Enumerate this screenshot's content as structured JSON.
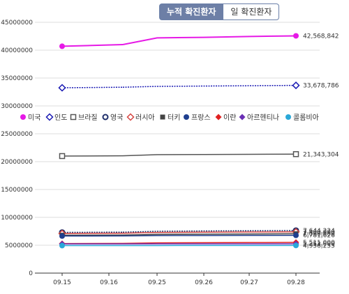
{
  "tabs": {
    "cumulative": "누적 확진환자",
    "daily": "일 확진환자"
  },
  "chart_data": {
    "type": "line",
    "categories": [
      "09.15",
      "09.16",
      "09.25",
      "09.26",
      "09.27",
      "09.28"
    ],
    "ylim": [
      0,
      45000000
    ],
    "yticks": [
      0,
      5000000,
      10000000,
      15000000,
      20000000,
      25000000,
      30000000,
      35000000,
      40000000,
      45000000
    ],
    "ytick_labels": [
      "0",
      "5000000",
      "10000000",
      "15000000",
      "20000000",
      "25000000",
      "30000000",
      "35000000",
      "40000000",
      "45000000"
    ],
    "grid": true,
    "legend_position": "middle",
    "series": [
      {
        "name": "미국",
        "color": "#e619e6",
        "marker": "circle-filled",
        "style": "solid",
        "values": [
          40700000,
          41000000,
          42200000,
          42300000,
          42450000,
          42568842
        ],
        "end_label": "42,568,842"
      },
      {
        "name": "인도",
        "color": "#1a1ab3",
        "marker": "diamond-open",
        "style": "dotted",
        "values": [
          33250000,
          33350000,
          33500000,
          33560000,
          33620000,
          33678786
        ],
        "end_label": "33,678,786"
      },
      {
        "name": "브라질",
        "color": "#555555",
        "marker": "square-open",
        "style": "solid",
        "values": [
          21000000,
          21050000,
          21250000,
          21280000,
          21310000,
          21343304
        ],
        "end_label": "21,343,304"
      },
      {
        "name": "영국",
        "color": "#1f2f6b",
        "marker": "circle-open",
        "style": "dotted",
        "values": [
          7300000,
          7350000,
          7500000,
          7560000,
          7600000,
          7644224
        ],
        "end_label": "7,644,224"
      },
      {
        "name": "러시아",
        "color": "#d64541",
        "marker": "diamond-open",
        "style": "solid",
        "values": [
          7100000,
          7150000,
          7300000,
          7340000,
          7370000,
          7400000
        ],
        "end_label": "7,400,000"
      },
      {
        "name": "터키",
        "color": "#444444",
        "marker": "square-filled",
        "style": "solid",
        "values": [
          6800000,
          6830000,
          6950000,
          6990000,
          7020000,
          7060000
        ],
        "end_label": "7,060,000"
      },
      {
        "name": "프랑스",
        "color": "#1f3f8f",
        "marker": "circle-filled",
        "style": "solid",
        "values": [
          6650000,
          6670000,
          6720000,
          6740000,
          6760000,
          6781626
        ],
        "end_label": "6,781,626"
      },
      {
        "name": "이란",
        "color": "#e02020",
        "marker": "diamond-filled",
        "style": "solid",
        "values": [
          5300000,
          5330000,
          5420000,
          5450000,
          5480000,
          5511000
        ],
        "end_label": "5,511,000"
      },
      {
        "name": "아르헨티나",
        "color": "#6a2fb5",
        "marker": "diamond-filled",
        "style": "solid",
        "values": [
          5230000,
          5235000,
          5245000,
          5248000,
          5250000,
          5253000
        ],
        "end_label": "5,253,000"
      },
      {
        "name": "콜롬비아",
        "color": "#2aa8d8",
        "marker": "circle-filled",
        "style": "solid",
        "values": [
          4930000,
          4935000,
          4945000,
          4950000,
          4953000,
          4956255
        ],
        "end_label": "4,956,255"
      }
    ]
  }
}
